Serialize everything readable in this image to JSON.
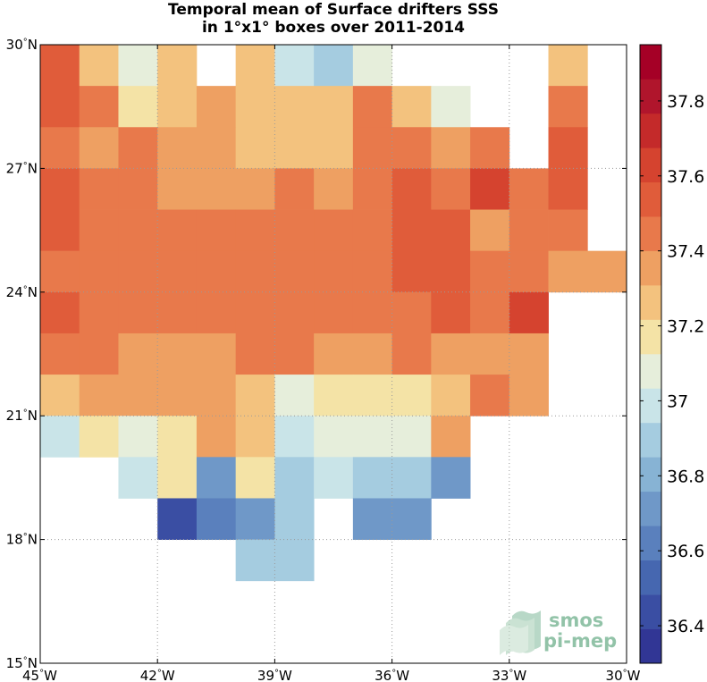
{
  "chart_data": {
    "type": "heatmap",
    "title": "Temporal mean of Surface drifters SSS",
    "subtitle": "in 1°x1° boxes over 2011-2014",
    "x_range": [
      -45,
      -30
    ],
    "y_range": [
      15,
      30
    ],
    "cell_size_deg": 1,
    "x_ticks": [
      {
        "value": -45,
        "label": "45°W"
      },
      {
        "value": -42,
        "label": "42°W"
      },
      {
        "value": -39,
        "label": "39°W"
      },
      {
        "value": -36,
        "label": "36°W"
      },
      {
        "value": -33,
        "label": "33°W"
      },
      {
        "value": -30,
        "label": "30°W"
      }
    ],
    "y_ticks": [
      {
        "value": 30,
        "label": "30°N"
      },
      {
        "value": 27,
        "label": "27°N"
      },
      {
        "value": 24,
        "label": "24°N"
      },
      {
        "value": 21,
        "label": "21°N"
      },
      {
        "value": 18,
        "label": "18°N"
      },
      {
        "value": 15,
        "label": "15°N"
      }
    ],
    "grid": true,
    "colorbar": {
      "range": [
        36.3,
        37.95
      ],
      "ticks": [
        36.4,
        36.6,
        36.8,
        37,
        37.2,
        37.4,
        37.6,
        37.8
      ],
      "tick_labels": [
        "36.4",
        "36.6",
        "36.8",
        "37",
        "37.2",
        "37.4",
        "37.6",
        "37.8"
      ],
      "colors": [
        "#313695",
        "#3a4ea3",
        "#4667b0",
        "#5a80bd",
        "#6f98c8",
        "#87b3d4",
        "#a5cce0",
        "#c9e4e8",
        "#e6eedb",
        "#f4e3a6",
        "#f3c27e",
        "#eea062",
        "#e8794b",
        "#e05c3a",
        "#d5432f",
        "#c42a2a",
        "#b0152c",
        "#a50026"
      ]
    },
    "values_note": "rows from 30°N (top) to 15°N; columns from 45°W to 30°W; null = no data",
    "values": [
      [
        37.57,
        37.3,
        37.12,
        37.3,
        null,
        37.3,
        37.0,
        36.92,
        37.12,
        null,
        null,
        null,
        null,
        37.3,
        null
      ],
      [
        37.57,
        37.48,
        37.2,
        37.3,
        37.4,
        37.3,
        37.22,
        37.3,
        37.48,
        37.3,
        37.12,
        null,
        null,
        37.48,
        null
      ],
      [
        37.48,
        37.4,
        37.48,
        37.4,
        37.4,
        37.3,
        37.22,
        37.3,
        37.48,
        37.48,
        37.4,
        37.48,
        null,
        37.57,
        null
      ],
      [
        37.57,
        37.48,
        37.48,
        37.4,
        37.4,
        37.4,
        37.48,
        37.4,
        37.48,
        37.57,
        37.48,
        37.6,
        37.48,
        37.57,
        null
      ],
      [
        37.57,
        37.48,
        37.48,
        37.48,
        37.48,
        37.48,
        37.48,
        37.48,
        37.48,
        37.57,
        37.57,
        37.4,
        37.48,
        37.48,
        null
      ],
      [
        37.48,
        37.48,
        37.48,
        37.48,
        37.48,
        37.48,
        37.48,
        37.48,
        37.48,
        37.57,
        37.57,
        37.48,
        37.48,
        37.4,
        37.4
      ],
      [
        37.57,
        37.48,
        37.48,
        37.48,
        37.48,
        37.48,
        37.48,
        37.48,
        37.48,
        37.48,
        37.57,
        37.48,
        37.6,
        null,
        null
      ],
      [
        37.48,
        37.48,
        37.4,
        37.4,
        37.4,
        37.48,
        37.48,
        37.4,
        37.4,
        37.48,
        37.4,
        37.4,
        37.4,
        null,
        null
      ],
      [
        37.3,
        37.4,
        37.4,
        37.4,
        37.4,
        37.3,
        37.12,
        37.2,
        37.2,
        37.2,
        37.3,
        37.48,
        37.4,
        null,
        null
      ],
      [
        37.02,
        37.2,
        37.12,
        37.2,
        37.4,
        37.3,
        37.02,
        37.12,
        37.12,
        37.12,
        37.4,
        null,
        null,
        null,
        null
      ],
      [
        null,
        null,
        37.02,
        37.2,
        36.7,
        37.2,
        36.92,
        37.02,
        36.92,
        36.85,
        36.75,
        null,
        null,
        null,
        null
      ],
      [
        null,
        null,
        null,
        36.45,
        36.62,
        36.75,
        36.85,
        null,
        36.68,
        36.75,
        null,
        null,
        null,
        null,
        null
      ],
      [
        null,
        null,
        null,
        null,
        null,
        36.85,
        36.85,
        null,
        null,
        null,
        null,
        null,
        null,
        null,
        null
      ],
      [
        null,
        null,
        null,
        null,
        null,
        null,
        null,
        null,
        null,
        null,
        null,
        null,
        null,
        null,
        null
      ],
      [
        null,
        null,
        null,
        null,
        null,
        null,
        null,
        null,
        null,
        null,
        null,
        null,
        null,
        null,
        null
      ]
    ]
  },
  "logo": {
    "text_line1": "smos",
    "text_line2": "pi-mep",
    "color": "#7fb99a"
  }
}
